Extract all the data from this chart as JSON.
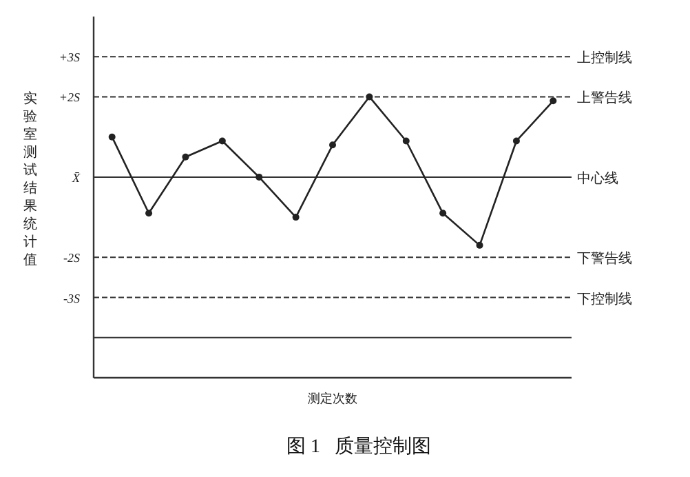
{
  "chart_data": {
    "type": "line",
    "title": "图 1   质量控制图",
    "xlabel": "测定次数",
    "ylabel": "实验室测试结果统计值",
    "categories": [
      null,
      null,
      null,
      null,
      null,
      null,
      null,
      null,
      null,
      null,
      null,
      null,
      null
    ],
    "series": [
      {
        "color": "#222222",
        "values": [
          1.0,
          -0.9,
          0.5,
          0.9,
          0,
          -1.0,
          0.8,
          2.0,
          0.9,
          -0.9,
          -1.7,
          0.9,
          1.9
        ]
      }
    ],
    "ylim": [
      -5,
      4
    ],
    "yticks": [
      {
        "value": 3,
        "label": "+3S"
      },
      {
        "value": 2,
        "label": "+2S"
      },
      {
        "value": 0,
        "label": "X̄"
      },
      {
        "value": -2,
        "label": "-2S"
      },
      {
        "value": -3,
        "label": "-3S"
      }
    ],
    "ref_lines": [
      {
        "axis": "y",
        "value": 3,
        "label": "上控制线",
        "line_style": "dashed"
      },
      {
        "axis": "y",
        "value": 2,
        "label": "上警告线",
        "line_style": "dashed"
      },
      {
        "axis": "y",
        "value": 0,
        "label": "中心线",
        "line_style": "solid"
      },
      {
        "axis": "y",
        "value": -2,
        "label": "下警告线",
        "line_style": "dashed"
      },
      {
        "axis": "y",
        "value": -3,
        "label": "下控制线",
        "line_style": "dashed"
      },
      {
        "axis": "y",
        "value": -4,
        "line_style": "solid"
      }
    ],
    "marker": "circle",
    "grid": false
  }
}
